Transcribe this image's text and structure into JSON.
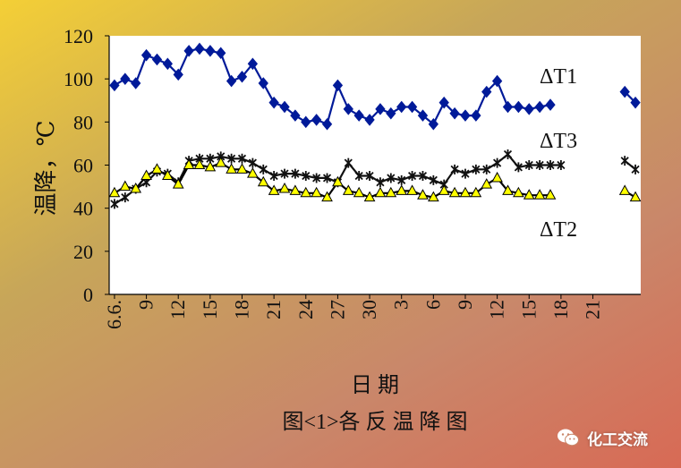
{
  "chart_data": {
    "type": "line",
    "title": "图<1>各 反 温 降 图",
    "xlabel": "日 期",
    "ylabel": "温降，℃",
    "ylim": [
      0,
      120
    ],
    "yticks": [
      "0",
      "20",
      "40",
      "60",
      "80",
      "100",
      "120"
    ],
    "x_tick_labels": [
      "6.6.",
      "9",
      "12",
      "15",
      "18",
      "21",
      "24",
      "27",
      "30",
      "3",
      "6",
      "9",
      "12",
      "15",
      "18",
      "21"
    ],
    "grid": false,
    "legend": "inline labels at right",
    "series": [
      {
        "name": "ΔT1",
        "color": "#001a99",
        "marker": "diamond",
        "values": [
          97,
          100,
          98,
          111,
          109,
          107,
          102,
          113,
          114,
          113,
          112,
          99,
          101,
          107,
          98,
          89,
          87,
          83,
          80,
          81,
          79,
          97,
          86,
          83,
          81,
          86,
          84,
          87,
          87,
          83,
          79,
          89,
          84,
          83,
          83,
          94,
          99,
          87,
          87,
          86,
          87,
          88,
          null,
          null,
          null,
          null,
          null,
          null,
          94,
          89
        ]
      },
      {
        "name": "ΔT3",
        "color": "#111111",
        "marker": "asterisk",
        "values": [
          42,
          45,
          49,
          52,
          57,
          56,
          52,
          62,
          63,
          63,
          64,
          63,
          63,
          61,
          58,
          55,
          56,
          56,
          55,
          54,
          54,
          52,
          61,
          55,
          55,
          52,
          54,
          53,
          55,
          55,
          53,
          51,
          58,
          56,
          58,
          58,
          61,
          65,
          59,
          60,
          60,
          60,
          60,
          null,
          null,
          null,
          null,
          null,
          62,
          58
        ]
      },
      {
        "name": "ΔT2",
        "color": "#000000",
        "fill": "#ffff00",
        "marker": "triangle",
        "values": [
          47,
          50,
          49,
          55,
          58,
          55,
          51,
          60,
          60,
          59,
          61,
          58,
          58,
          56,
          52,
          48,
          49,
          48,
          47,
          47,
          45,
          52,
          48,
          47,
          45,
          47,
          47,
          48,
          48,
          46,
          45,
          48,
          47,
          47,
          47,
          51,
          54,
          48,
          47,
          46,
          46,
          46,
          null,
          null,
          null,
          null,
          null,
          null,
          48,
          45
        ]
      }
    ]
  },
  "watermark": {
    "text": "化工交流",
    "icon": "wechat-icon"
  }
}
